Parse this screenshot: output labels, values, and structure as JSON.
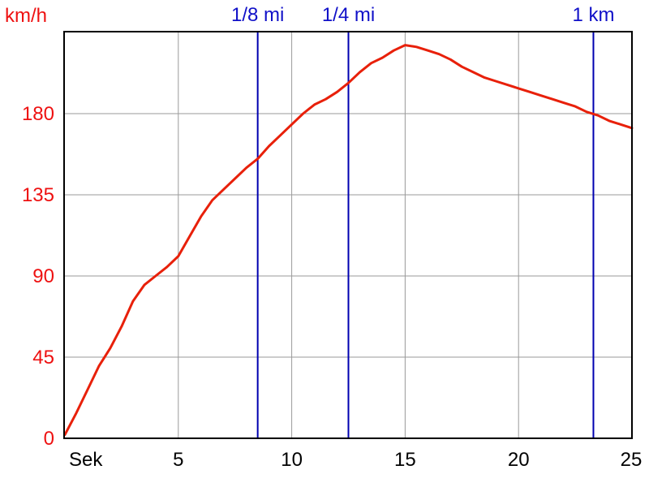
{
  "chart_data": {
    "type": "line",
    "title": "",
    "ylabel": "km/h",
    "xlabel": "Sek",
    "xlim": [
      0,
      25
    ],
    "ylim": [
      0,
      225
    ],
    "grid": true,
    "x_ticks": [
      {
        "value": 0,
        "label": "Sek"
      },
      {
        "value": 5,
        "label": "5"
      },
      {
        "value": 10,
        "label": "10"
      },
      {
        "value": 15,
        "label": "15"
      },
      {
        "value": 20,
        "label": "20"
      },
      {
        "value": 25,
        "label": "25"
      }
    ],
    "y_ticks": [
      {
        "value": 0,
        "label": "0"
      },
      {
        "value": 45,
        "label": "45"
      },
      {
        "value": 90,
        "label": "90"
      },
      {
        "value": 135,
        "label": "135"
      },
      {
        "value": 180,
        "label": "180"
      }
    ],
    "markers": [
      {
        "x": 8.5,
        "label": "1/8 mi"
      },
      {
        "x": 12.5,
        "label": "1/4 mi"
      },
      {
        "x": 23.3,
        "label": "1 km"
      }
    ],
    "series": [
      {
        "color": "#e8200a",
        "x": [
          0,
          0.5,
          1,
          1.5,
          2,
          2.5,
          3,
          3.5,
          4,
          4.5,
          5,
          5.5,
          6,
          6.5,
          7,
          7.5,
          8,
          8.5,
          9,
          9.5,
          10,
          10.5,
          11,
          11.5,
          12,
          12.5,
          13,
          13.5,
          14,
          14.5,
          15,
          15.5,
          16,
          16.5,
          17,
          17.5,
          18,
          18.5,
          19,
          19.5,
          20,
          20.5,
          21,
          21.5,
          22,
          22.5,
          23,
          23.5,
          24,
          24.5,
          25
        ],
        "y": [
          2,
          14,
          27,
          40,
          50,
          62,
          76,
          85,
          90,
          95,
          101,
          112,
          123,
          132,
          138,
          144,
          150,
          155,
          162,
          168,
          174,
          180,
          185,
          188,
          192,
          197,
          203,
          208,
          211,
          215,
          218,
          217,
          215,
          213,
          210,
          206,
          203,
          200,
          198,
          196,
          194,
          192,
          190,
          188,
          186,
          184,
          181,
          179,
          176,
          174,
          172
        ]
      }
    ]
  }
}
